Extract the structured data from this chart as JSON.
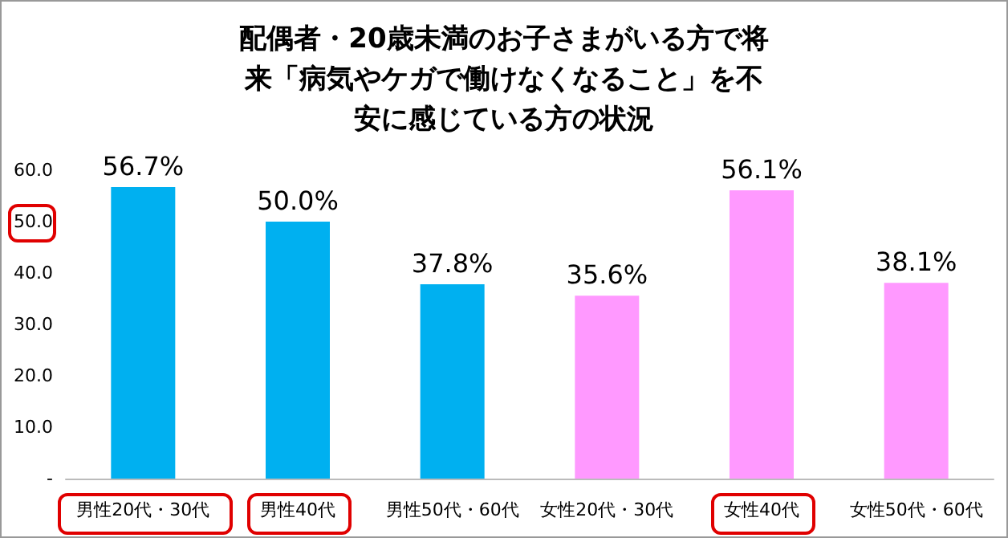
{
  "chart_data": {
    "type": "bar",
    "title": "配偶者・20歳未満のお子さまがいる方で将来「病気やケガで働けなくなること」を不安に感じている方の状況",
    "categories": [
      "男性20代・30代",
      "男性40代",
      "男性50代・60代",
      "女性20代・30代",
      "女性40代",
      "女性50代・60代"
    ],
    "values": [
      56.7,
      50.0,
      37.8,
      35.6,
      56.1,
      38.1
    ],
    "colors": [
      "#00b0f0",
      "#00b0f0",
      "#00b0f0",
      "#ff99ff",
      "#ff99ff",
      "#ff99ff"
    ],
    "value_labels": [
      "56.7%",
      "50.0%",
      "37.8%",
      "35.6%",
      "56.1%",
      "38.1%"
    ],
    "ylim": [
      0,
      60
    ],
    "yticks": [
      {
        "value": 0,
        "label": "-"
      },
      {
        "value": 10,
        "label": "10.0"
      },
      {
        "value": 20,
        "label": "20.0"
      },
      {
        "value": 30,
        "label": "30.0"
      },
      {
        "value": 40,
        "label": "40.0"
      },
      {
        "value": 50,
        "label": "50.0"
      },
      {
        "value": 60,
        "label": "60.0"
      }
    ],
    "grid": false
  }
}
